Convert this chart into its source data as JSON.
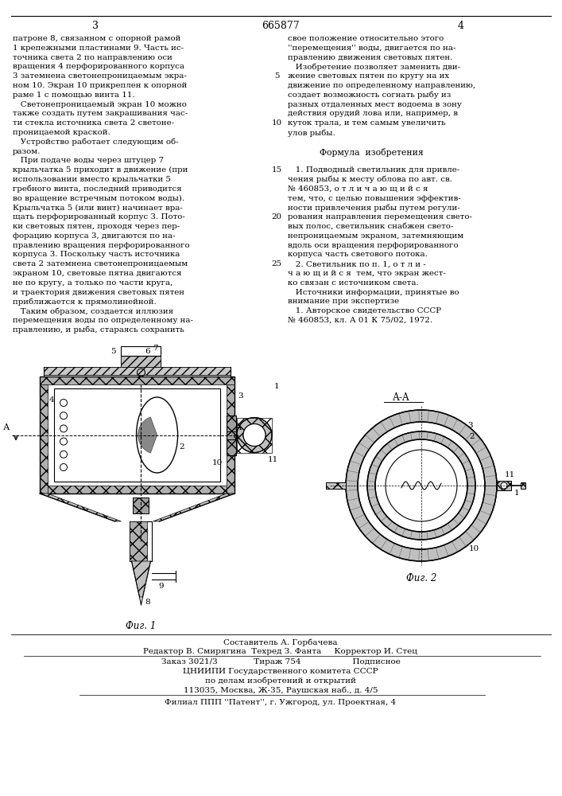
{
  "title": "665877",
  "page_left": "3",
  "page_right": "4",
  "background": "#ffffff",
  "fig_width": 7.07,
  "fig_height": 10.0,
  "left_column_text": [
    "патроне 8, связанном с опорной рамой",
    "1 крепежными пластинами 9. Часть ис-",
    "точника света 2 по направлению оси",
    "вращения 4 перфорированного корпуса",
    "3 затемнена светонепроницаемым экра-",
    "ном 10. Экран 10 прикреплен к опорной",
    "раме 1 с помощью винта 11.",
    "   Светонепроницаемый экран 10 можно",
    "также создать путем закрашивания час-",
    "ти стекла источника света 2 светоне-",
    "проницаемой краской.",
    "   Устройство работает следующим об-",
    "разом.",
    "   При подаче воды через штуцер 7",
    "крыльчатка 5 приходит в движение (при",
    "использовании вместо крыльчатки 5",
    "гребного винта, последний приводится",
    "во вращение встречным потоком воды).",
    "Крыльчатка 5 (или винт) начинает вра-",
    "щать перфорированный корпус 3. Пото-",
    "ки световых пятен, проходя через пер-",
    "форацию корпуса 3, двигаются по на-",
    "правлению вращения перфорированного",
    "корпуса 3. Поскольку часть источника",
    "света 2 затемнена светонепроницаемым",
    "экраном 10, световые пятна двигаются",
    "не по кругу, а только по части круга,",
    "и траектория движения световых пятен",
    "приближается к прямолинейной.",
    "   Таким образом, создается иллюзия",
    "перемещения воды по определенному на-",
    "правлению, и рыба, стараясь сохранить"
  ],
  "right_column_text": [
    "свое положение относительно этого",
    "''перемещения'' воды, двигается по на-",
    "правлению движения световых пятен.",
    "   Изобретение позволяет заменить дви-",
    "жение световых пятен по кругу на их",
    "движение по определенному направлению,",
    "создает возможность согнать рыбу из",
    "разных отдаленных мест водоема в зону",
    "действия орудий лова или, например, в",
    "куток трала, и тем самым увеличить",
    "улов рыбы.",
    "",
    "Формула  изобретения",
    "",
    "   1. Подводный светильник для привле-",
    "чения рыбы к месту облова по авт. св.",
    "№ 460853, о т л и ч а ю щ и й с я",
    "тем, что, с целью повышения эффектив-",
    "ности привлечения рыбы путем регули-",
    "рования направления перемещения свето-",
    "вых полос, светильник снабжен свето-",
    "непроницаемым экраном, затемняющим",
    "вдоль оси вращения перфорированного",
    "корпуса часть светового потока.",
    "   2. Светильник по п. 1, о т л и -",
    "ч а ю щ и й с я  тем, что экран жест-",
    "ко связан с источником света.",
    "   Источники информации, принятые во",
    "внимание при экспертизе",
    "   1. Авторское свидетельство СССР",
    "№ 460853, кл. А 01 К 75/02, 1972."
  ],
  "line_numbers_idx": [
    4,
    9,
    14,
    19,
    24
  ],
  "line_numbers_val": [
    "5",
    "10",
    "15",
    "20",
    "25"
  ],
  "footer_line1": "Составитель А. Горбачева",
  "footer_line2": "Редактор В. Смирягина  Техред З. Фанта     Корректор И. Стец",
  "footer_line3": "Заказ 3021/3              Тираж 754                    Подписное",
  "footer_line4": "ЦНИИПИ Государственного комитета СССР",
  "footer_line5": "по делам изобретений и открытий",
  "footer_line6": "113035, Москва, Ж-35, Раушская наб., д. 4/5",
  "footer_line7": "Филиал ППП ''Патент'', г. Ужгород, ул. Проектная, 4",
  "fig1_label": "Фиг. 1",
  "fig2_label": "Фиг. 2",
  "aa_label": "А-А"
}
